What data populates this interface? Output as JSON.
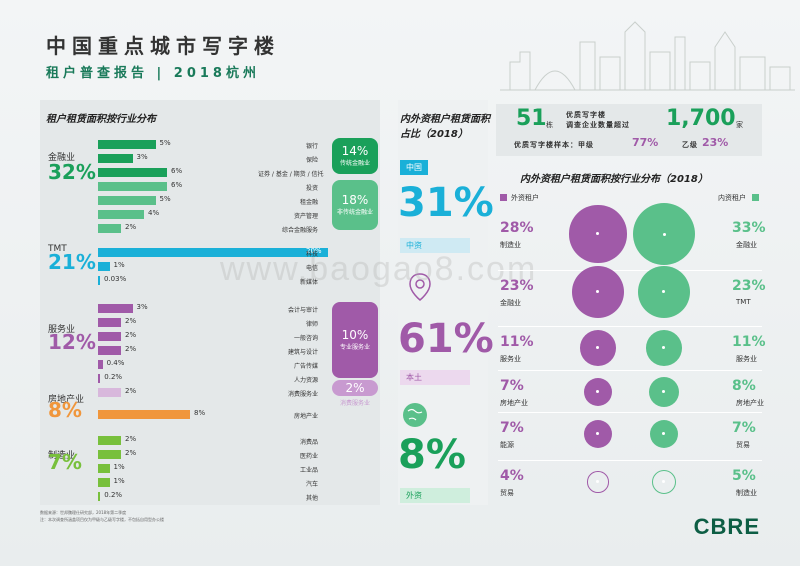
{
  "header": {
    "title": "中国重点城市写字楼",
    "subtitle": "租户普查报告 | 2018杭州"
  },
  "left": {
    "title": "租户租赁面积按行业分布",
    "categories": [
      {
        "name": "金融业",
        "pct": "32%",
        "color": "#1aa05a"
      },
      {
        "name": "TMT",
        "pct": "21%",
        "color": "#1ab0d8"
      },
      {
        "name": "服务业",
        "pct": "12%",
        "color": "#a05aa8"
      },
      {
        "name": "房地产业",
        "pct": "8%",
        "color": "#f0963c"
      },
      {
        "name": "制造业",
        "pct": "7%",
        "color": "#78c03c"
      }
    ],
    "bars": [
      {
        "pct": "5%",
        "value": 5,
        "label": "银行",
        "color": "#1aa05a"
      },
      {
        "pct": "3%",
        "value": 3,
        "label": "保险",
        "color": "#1aa05a"
      },
      {
        "pct": "6%",
        "value": 6,
        "label": "证券 / 基金 / 期货 / 信托",
        "color": "#1aa05a"
      },
      {
        "pct": "6%",
        "value": 6,
        "label": "投资",
        "color": "#5ac08a"
      },
      {
        "pct": "5%",
        "value": 5,
        "label": "租金融",
        "color": "#5ac08a"
      },
      {
        "pct": "4%",
        "value": 4,
        "label": "资产管理",
        "color": "#5ac08a"
      },
      {
        "pct": "2%",
        "value": 2,
        "label": "综合金融服务",
        "color": "#5ac08a"
      },
      {
        "pct": "20%",
        "value": 20,
        "label": "科技",
        "color": "#1ab0d8"
      },
      {
        "pct": "1%",
        "value": 1,
        "label": "电信",
        "color": "#1ab0d8"
      },
      {
        "pct": "0.03%",
        "value": 0.03,
        "label": "新媒体",
        "color": "#1ab0d8"
      },
      {
        "pct": "3%",
        "value": 3,
        "label": "会计与审计",
        "color": "#a05aa8"
      },
      {
        "pct": "2%",
        "value": 2,
        "label": "律师",
        "color": "#a05aa8"
      },
      {
        "pct": "2%",
        "value": 2,
        "label": "一般咨询",
        "color": "#a05aa8"
      },
      {
        "pct": "2%",
        "value": 2,
        "label": "建筑与设计",
        "color": "#a05aa8"
      },
      {
        "pct": "0.4%",
        "value": 0.4,
        "label": "广告传媒",
        "color": "#a05aa8"
      },
      {
        "pct": "0.2%",
        "value": 0.2,
        "label": "人力资源",
        "color": "#a05aa8"
      },
      {
        "pct": "2%",
        "value": 2,
        "label": "消费服务业",
        "color": "#d8b8dc"
      },
      {
        "pct": "8%",
        "value": 8,
        "label": "房地产业",
        "color": "#f0963c"
      },
      {
        "pct": "2%",
        "value": 2,
        "label": "消费品",
        "color": "#78c03c"
      },
      {
        "pct": "2%",
        "value": 2,
        "label": "医药业",
        "color": "#78c03c"
      },
      {
        "pct": "1%",
        "value": 1,
        "label": "工业品",
        "color": "#78c03c"
      },
      {
        "pct": "1%",
        "value": 1,
        "label": "汽车",
        "color": "#78c03c"
      },
      {
        "pct": "0.2%",
        "value": 0.2,
        "label": "其他",
        "color": "#78c03c"
      }
    ],
    "pills": [
      {
        "big": "14%",
        "small": "传统金融业",
        "color": "#1aa05a"
      },
      {
        "big": "18%",
        "small": "非传统金融业",
        "color": "#5ac08a"
      },
      {
        "big": "10%",
        "small": "专业服务业",
        "color": "#a05aa8"
      },
      {
        "big": "2%",
        "small": "消费服务业",
        "color": "#c89ad0"
      }
    ]
  },
  "middle": {
    "title": "内外资租户租赁面积占比（2018）",
    "items": [
      {
        "tag": "中国",
        "pct": "31%",
        "label": "中资",
        "color": "#1ab0d8"
      },
      {
        "pct": "61%",
        "label": "本土",
        "color": "#a05aa8"
      },
      {
        "pct": "8%",
        "label": "外资",
        "color": "#1aa05a"
      }
    ]
  },
  "stats": {
    "buildings_num": "51",
    "buildings_unit": "栋",
    "desc1": "优质写字楼",
    "desc2": "调查企业数量超过",
    "companies_num": "1,700",
    "companies_unit": "家",
    "sample_label": "优质写字楼样本：甲级",
    "grade_a": "77%",
    "grade_b_label": "乙级",
    "grade_b": "23%"
  },
  "right": {
    "title": "内外资租户租赁面积按行业分布（2018）",
    "domestic_label": "外资租户",
    "foreign_label": "内资租户",
    "rows": [
      {
        "l_pct": "28%",
        "l_name": "制造业",
        "l_val": 28,
        "r_pct": "33%",
        "r_name": "金融业",
        "r_val": 33
      },
      {
        "l_pct": "23%",
        "l_name": "金融业",
        "l_val": 23,
        "r_pct": "23%",
        "r_name": "TMT",
        "r_val": 23
      },
      {
        "l_pct": "11%",
        "l_name": "服务业",
        "l_val": 11,
        "r_pct": "11%",
        "r_name": "服务业",
        "r_val": 11
      },
      {
        "l_pct": "7%",
        "l_name": "房地产业",
        "l_val": 7,
        "r_pct": "8%",
        "r_name": "房地产业",
        "r_val": 8
      },
      {
        "l_pct": "7%",
        "l_name": "能源",
        "l_val": 7,
        "r_pct": "7%",
        "r_name": "贸易",
        "r_val": 7
      },
      {
        "l_pct": "4%",
        "l_name": "贸易",
        "l_val": 4,
        "r_pct": "5%",
        "r_name": "制造业",
        "r_val": 5
      }
    ],
    "colors": {
      "left": "#a05aa8",
      "right": "#5ac08a"
    }
  },
  "footer": {
    "line1": "数据来源：世邦魏理仕研究部，2018年第二季度",
    "line2": "注：本次调查所涵盖项目仅为甲级与乙级写字楼，不包括自用型办公楼",
    "logo": "CBRE",
    "watermark": "www.baogao8.com"
  }
}
